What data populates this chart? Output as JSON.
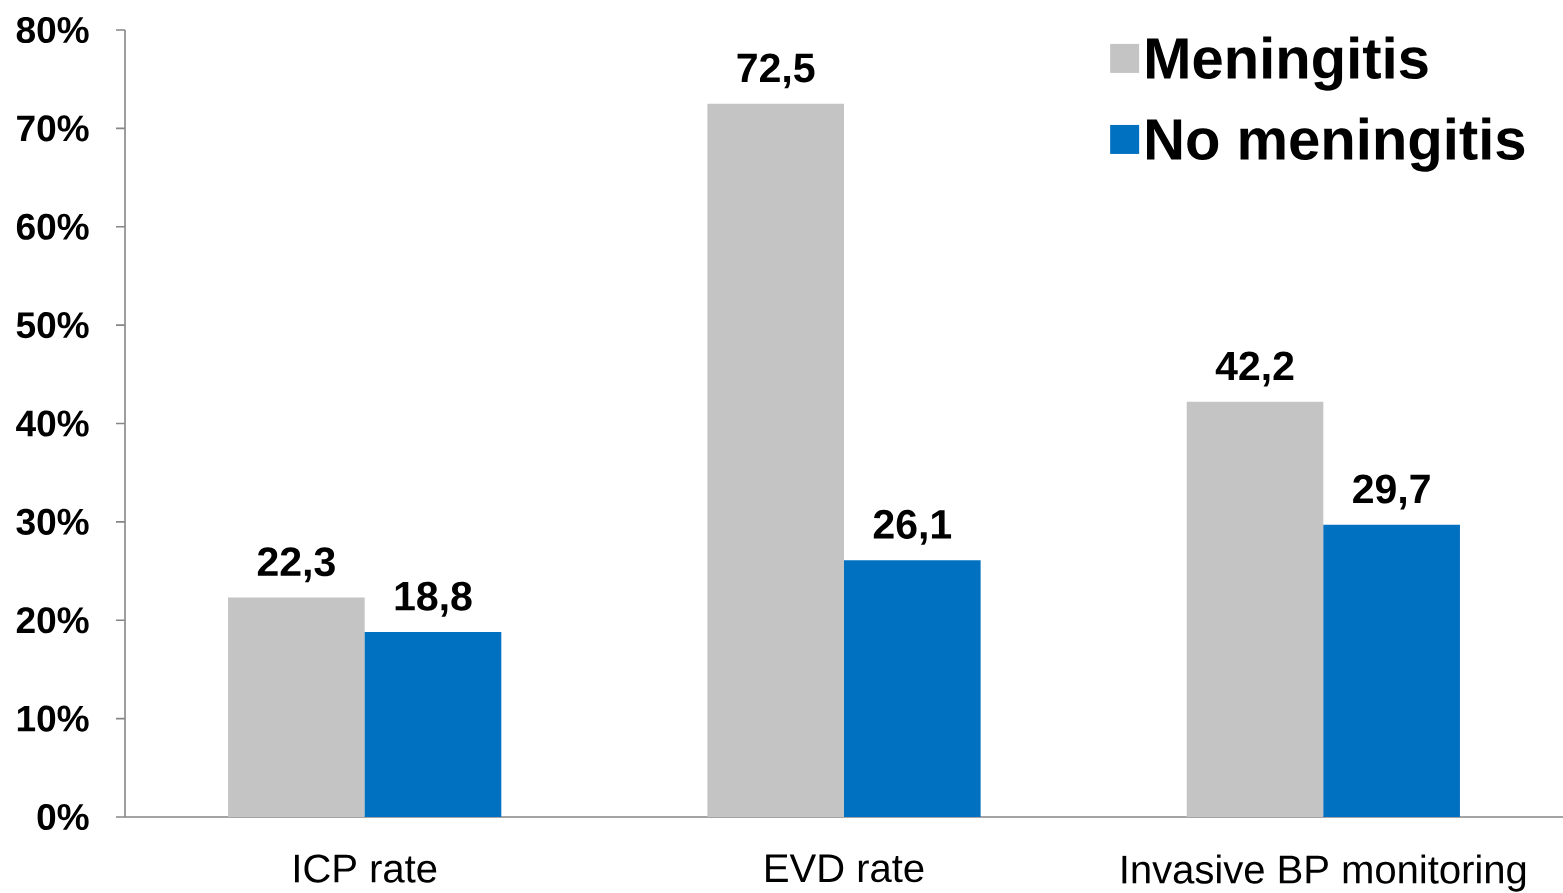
{
  "chart_data": {
    "type": "bar",
    "categories": [
      "ICP rate",
      "EVD rate",
      "Invasive BP monitoring"
    ],
    "series": [
      {
        "name": "Meningitis",
        "color": "#c4c4c4",
        "values": [
          22.3,
          72.5,
          42.2
        ],
        "value_labels": [
          "22,3",
          "72,5",
          "42,2"
        ]
      },
      {
        "name": "No meningitis",
        "color": "#0070c0",
        "values": [
          18.8,
          26.1,
          29.7
        ],
        "value_labels": [
          "18,8",
          "26,1",
          "29,7"
        ]
      }
    ],
    "ylim": [
      0,
      80
    ],
    "yticks": [
      {
        "value": 0,
        "label": "0%"
      },
      {
        "value": 10,
        "label": "10%"
      },
      {
        "value": 20,
        "label": "20%"
      },
      {
        "value": 30,
        "label": "30%"
      },
      {
        "value": 40,
        "label": "40%"
      },
      {
        "value": 50,
        "label": "50%"
      },
      {
        "value": 60,
        "label": "60%"
      },
      {
        "value": 70,
        "label": "70%"
      },
      {
        "value": 80,
        "label": "80%"
      }
    ],
    "legend": "top right"
  }
}
